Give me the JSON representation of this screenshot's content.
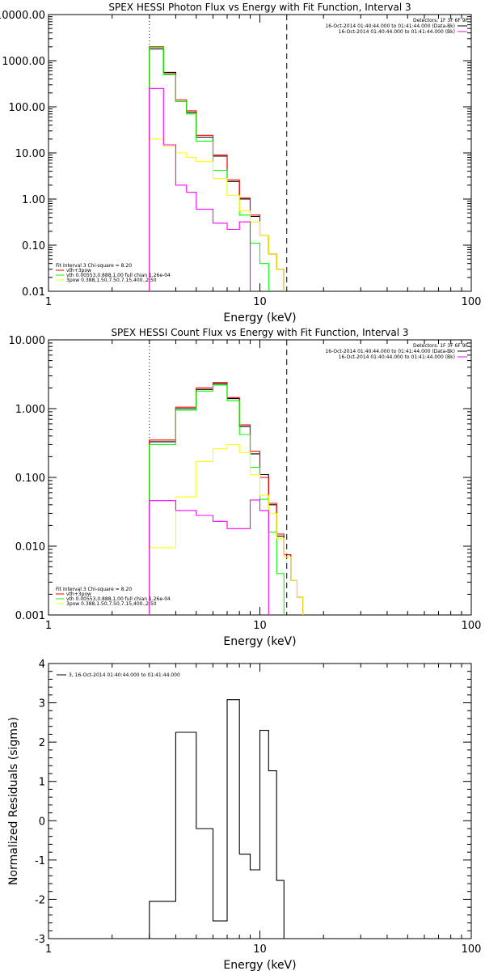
{
  "chart_data": [
    {
      "type": "line",
      "title": "SPEX HESSI Photon Flux vs Energy with Fit Function, Interval 3",
      "xlabel": "Energy (keV)",
      "ylabel": "",
      "x_scale": "log",
      "y_scale": "log",
      "xlim": [
        1,
        100
      ],
      "ylim": [
        0.01,
        10000
      ],
      "x_ticks": [
        "1",
        "10",
        "100"
      ],
      "y_ticks": [
        "10000.00",
        "1000.00",
        "100.00",
        "10.00",
        "1.00",
        "0.10",
        "0.01"
      ],
      "vlines": [
        {
          "x": 3.0,
          "style": "dotted"
        },
        {
          "x": 13.4,
          "style": "dashed"
        }
      ],
      "legend_top": {
        "title": "Detectors: 1F 3F 6F 9F",
        "entries": [
          {
            "text": "16-Oct-2014 01:40:44.000 to 01:41:44.000 (Data-Bk)",
            "color": "#000000"
          },
          {
            "text": "16-Oct-2014 01:40:44.000 to 01:41:44.000 (Bk)",
            "color": "#ff00ff"
          }
        ]
      },
      "legend_bottom": {
        "title": "Fit Interval 3   Chi-square = 8.20",
        "entries": [
          {
            "text": "vth+3pow",
            "color": "#ff0000"
          },
          {
            "text": "vth 0.00553,0.888,1.00   full chian 1.26e-04",
            "color": "#00ff00"
          },
          {
            "text": "3pow 0.388,1.50,7.50,7.15,400.,2.50",
            "color": "#ffff00"
          }
        ]
      },
      "bin_edges": [
        3.0,
        3.5,
        4.0,
        4.5,
        5.0,
        6.0,
        7.0,
        8.0,
        9.0,
        10.0,
        11.0,
        12.0,
        13.0,
        14.0,
        15.0,
        16.0,
        18.0
      ],
      "series": [
        {
          "name": "16-Oct-2014 01:40:44.000 to 01:41:44.000 (Data-Bk)",
          "color": "#000000",
          "values": [
            1800,
            560,
            130,
            75,
            22,
            8.5,
            2.4,
            1.0,
            0.42,
            0.16,
            0.065,
            0.03,
            null,
            null,
            null,
            null
          ]
        },
        {
          "name": "vth+3pow",
          "color": "#ff0000",
          "values": [
            2000,
            520,
            140,
            82,
            24,
            9.0,
            2.6,
            1.05,
            0.45,
            0.16,
            0.065,
            0.03,
            null,
            null,
            null,
            null
          ]
        },
        {
          "name": "vth 0.00553,0.888,1.00   full chian 1.26e-04",
          "color": "#00ff00",
          "values": [
            1950,
            500,
            130,
            70,
            18,
            4.2,
            1.2,
            0.45,
            0.11,
            0.04,
            null,
            null,
            null,
            null,
            null,
            null
          ]
        },
        {
          "name": "3pow 0.388,1.50,7.50,7.15,400.,2.50",
          "color": "#ffff00",
          "values": [
            20,
            14,
            10,
            8,
            6.5,
            2.8,
            1.2,
            0.55,
            0.32,
            0.16,
            0.065,
            0.03,
            null,
            null,
            null,
            null
          ]
        },
        {
          "name": "16-Oct-2014 01:40:44.000 to 01:41:44.000 (Bk)",
          "color": "#ff00ff",
          "values": [
            250,
            15,
            2.0,
            1.4,
            0.6,
            0.3,
            0.22,
            0.32,
            null,
            null,
            null,
            null,
            null,
            null,
            null,
            null
          ]
        }
      ]
    },
    {
      "type": "line",
      "title": "SPEX HESSI Count Flux vs Energy with Fit Function, Interval 3",
      "xlabel": "Energy (keV)",
      "ylabel": "",
      "x_scale": "log",
      "y_scale": "log",
      "xlim": [
        1,
        100
      ],
      "ylim": [
        0.001,
        10
      ],
      "x_ticks": [
        "1",
        "10",
        "100"
      ],
      "y_ticks": [
        "10.000",
        "1.000",
        "0.100",
        "0.010",
        "0.001"
      ],
      "vlines": [
        {
          "x": 3.0,
          "style": "dotted"
        },
        {
          "x": 13.4,
          "style": "dashed"
        }
      ],
      "legend_top": {
        "title": "Detectors: 1F 3F 6F 9F",
        "entries": [
          {
            "text": "16-Oct-2014 01:40:44.000 to 01:41:44.000 (Data-Bk)",
            "color": "#000000"
          },
          {
            "text": "16-Oct-2014 01:40:44.000 to 01:41:44.000 (Bk)",
            "color": "#ff00ff"
          }
        ]
      },
      "legend_bottom": {
        "title": "Fit Interval 3   Chi-square = 8.20",
        "entries": [
          {
            "text": "vth+3pow",
            "color": "#ff0000"
          },
          {
            "text": "vth 0.00553,0.888,1.00   full chian 1.26e-04",
            "color": "#00ff00"
          },
          {
            "text": "3pow 0.388,1.50,7.50,7.15,400.,2.50",
            "color": "#ffff00"
          }
        ]
      },
      "bin_edges": [
        3.0,
        4.0,
        5.0,
        6.0,
        7.0,
        8.0,
        9.0,
        10.0,
        11.0,
        12.0,
        13.0,
        14.0,
        15.0,
        16.0,
        18.0
      ],
      "series": [
        {
          "name": "16-Oct-2014 01:40:44.000 to 01:41:44.000 (Data-Bk)",
          "color": "#000000",
          "values": [
            0.33,
            1.0,
            1.9,
            2.3,
            1.4,
            0.55,
            0.22,
            0.11,
            0.04,
            0.014,
            0.0075,
            0.0032,
            0.0018,
            null
          ]
        },
        {
          "name": "vth+3pow",
          "color": "#ff0000",
          "values": [
            0.35,
            1.05,
            2.0,
            2.4,
            1.45,
            0.58,
            0.24,
            0.1,
            0.042,
            0.015,
            0.0075,
            0.0032,
            0.0018,
            null
          ]
        },
        {
          "name": "vth 0.00553,0.888,1.00   full chian 1.26e-04",
          "color": "#00ff00",
          "values": [
            0.3,
            0.95,
            1.8,
            2.2,
            1.3,
            0.42,
            0.14,
            0.048,
            0.016,
            0.004,
            null,
            null,
            null,
            null
          ]
        },
        {
          "name": "3pow 0.388,1.50,7.50,7.15,400.,2.50",
          "color": "#ffff00",
          "values": [
            0.0095,
            0.052,
            0.17,
            0.26,
            0.3,
            0.23,
            0.11,
            0.055,
            0.03,
            0.013,
            0.007,
            0.0032,
            0.0018,
            null
          ]
        },
        {
          "name": "16-Oct-2014 01:40:44.000 to 01:41:44.000 (Bk)",
          "color": "#ff00ff",
          "values": [
            0.046,
            0.033,
            0.028,
            0.023,
            0.018,
            0.018,
            0.047,
            0.033,
            null,
            null,
            null,
            null,
            null,
            null
          ]
        }
      ]
    },
    {
      "type": "line",
      "title": "",
      "xlabel": "Energy (keV)",
      "ylabel": "Normalized Residuals (sigma)",
      "x_scale": "log",
      "y_scale": "linear",
      "xlim": [
        1,
        100
      ],
      "ylim": [
        -3,
        4
      ],
      "x_ticks": [
        "1",
        "10",
        "100"
      ],
      "y_ticks": [
        "4",
        "3",
        "2",
        "1",
        "0",
        "-1",
        "-2",
        "-3"
      ],
      "legend": {
        "entries": [
          {
            "text": "3, 16-Oct-2014 01:40:44.000 to 01:41:44.000",
            "color": "#000000"
          }
        ]
      },
      "bin_edges": [
        3.0,
        4.0,
        5.0,
        6.0,
        7.0,
        8.0,
        9.0,
        10.0,
        11.0,
        12.0,
        13.0
      ],
      "series": [
        {
          "name": "3, 16-Oct-2014 01:40:44.000 to 01:41:44.000",
          "color": "#000000",
          "values": [
            -2.05,
            2.25,
            -0.2,
            -2.55,
            3.08,
            -0.85,
            -1.25,
            2.3,
            1.27,
            -1.52
          ]
        }
      ]
    }
  ]
}
